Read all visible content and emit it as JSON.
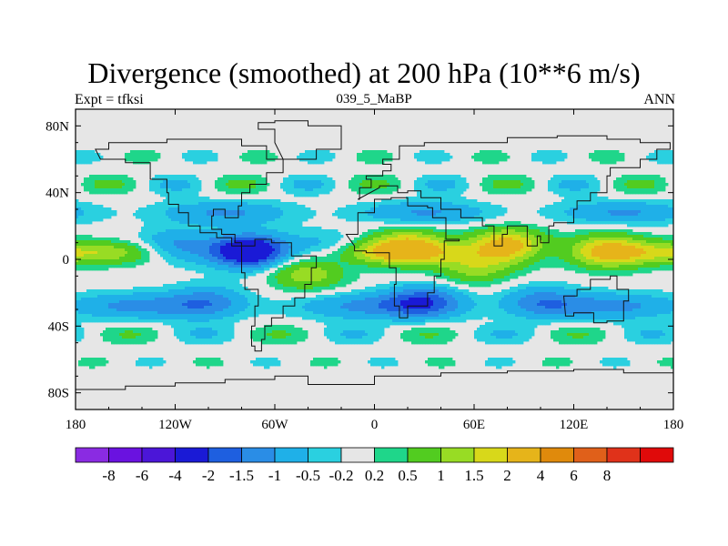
{
  "chart_data": {
    "type": "heatmap",
    "title": "Divergence (smoothed) at 200 hPa (10**6 m/s)",
    "left_label": "Expt = tfksi",
    "center_label": "039_5_MaBP",
    "right_label": "ANN",
    "x_axis": {
      "range": [
        -180,
        180
      ],
      "ticks": [
        -180,
        -120,
        -60,
        0,
        60,
        120,
        180
      ],
      "tick_labels": [
        "180",
        "120W",
        "60W",
        "0",
        "60E",
        "120E",
        "180"
      ]
    },
    "y_axis": {
      "range": [
        -90,
        90
      ],
      "ticks": [
        80,
        40,
        0,
        -40,
        -80
      ],
      "tick_labels": [
        "80N",
        "40N",
        "0",
        "40S",
        "80S"
      ]
    },
    "colorbar": {
      "colors": [
        "#8a2be2",
        "#6a12e0",
        "#4b16d8",
        "#1a1ad6",
        "#1e5fe0",
        "#2a8de6",
        "#1fb0e8",
        "#2ad0e0",
        "#e6e6e6",
        "#1fd68a",
        "#52cc20",
        "#98dc24",
        "#d8d81a",
        "#e6b41a",
        "#e08a0c",
        "#e0601a",
        "#e0321a",
        "#e00a0a"
      ],
      "labels": [
        "-8",
        "-6",
        "-4",
        "-2",
        "-1.5",
        "-1",
        "-0.5",
        "-0.2",
        "0.2",
        "0.5",
        "1",
        "1.5",
        "2",
        "4",
        "6",
        "8"
      ]
    },
    "levels": [
      -8,
      -6,
      -4,
      -2,
      -1.5,
      -1,
      -0.5,
      -0.2,
      0.2,
      0.5,
      1,
      1.5,
      2,
      4,
      6,
      8
    ],
    "field_features": [
      {
        "lon": -120,
        "lat": 8,
        "value": -1.2
      },
      {
        "lon": -75,
        "lat": 5,
        "value": -3.0
      },
      {
        "lon": -30,
        "lat": 5,
        "value": -1.2
      },
      {
        "lon": 20,
        "lat": 8,
        "value": 2.0
      },
      {
        "lon": 80,
        "lat": 8,
        "value": 2.5
      },
      {
        "lon": 140,
        "lat": 5,
        "value": 2.0
      },
      {
        "lon": -100,
        "lat": -25,
        "value": -1.0
      },
      {
        "lon": 30,
        "lat": -25,
        "value": -1.5
      },
      {
        "lon": 100,
        "lat": -25,
        "value": -1.0
      },
      {
        "lon": -40,
        "lat": -8,
        "value": 1.5
      },
      {
        "lon": 60,
        "lat": -5,
        "value": 1.2
      }
    ]
  }
}
